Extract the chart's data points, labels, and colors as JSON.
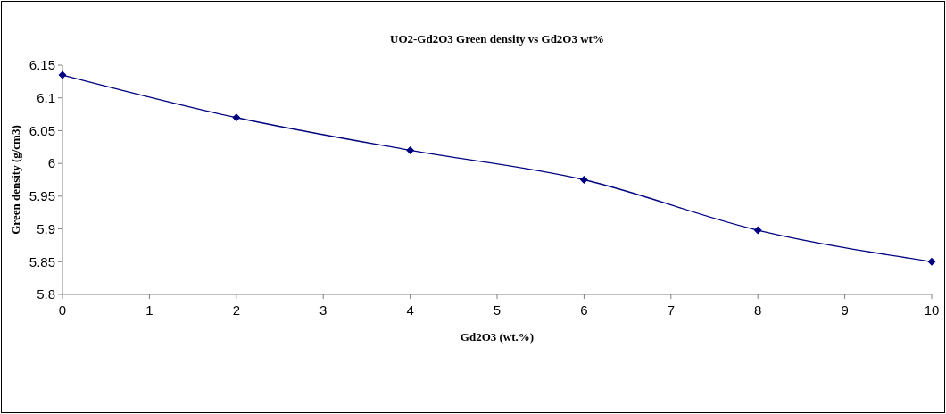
{
  "chart_data": {
    "type": "line",
    "title": "UO2-Gd2O3 Green density vs Gd2O3 wt%",
    "xlabel": "Gd2O3 (wt.%)",
    "ylabel": "Green density (g/cm3)",
    "x": [
      0,
      2,
      4,
      6,
      8,
      10
    ],
    "series": [
      {
        "color": "#000080",
        "values": [
          6.135,
          6.07,
          6.02,
          5.975,
          5.898,
          5.85
        ]
      }
    ],
    "xlim": [
      0,
      10
    ],
    "xticks": [
      0,
      1,
      2,
      3,
      4,
      5,
      6,
      7,
      8,
      9,
      10
    ],
    "ylim": [
      5.8,
      6.15
    ],
    "yticks": [
      5.8,
      5.85,
      5.9,
      5.95,
      6,
      6.05,
      6.1,
      6.15
    ],
    "grid": false,
    "marker": "diamond",
    "line_style": "solid"
  }
}
